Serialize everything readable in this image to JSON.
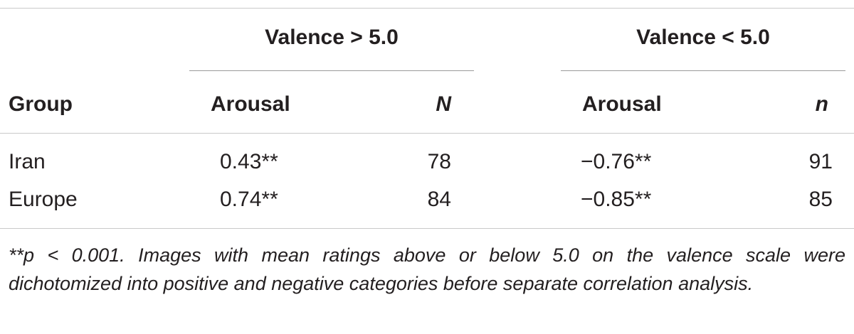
{
  "table": {
    "spanners": {
      "positive": "Valence > 5.0",
      "negative": "Valence < 5.0"
    },
    "headers": {
      "group": "Group",
      "arousal_pos": "Arousal",
      "n_pos": "N",
      "arousal_neg": "Arousal",
      "n_neg": "n"
    },
    "rows": [
      {
        "group": "Iran",
        "arousal_pos": "0.43**",
        "n_pos": "78",
        "arousal_neg": "−0.76**",
        "n_neg": "91"
      },
      {
        "group": "Europe",
        "arousal_pos": "0.74**",
        "n_pos": "84",
        "arousal_neg": "−0.85**",
        "n_neg": "85"
      }
    ],
    "footnote": "**p < 0.001. Images with mean ratings above or below 5.0 on the valence scale were dichotomized into positive and negative categories before separate correlation analysis."
  }
}
